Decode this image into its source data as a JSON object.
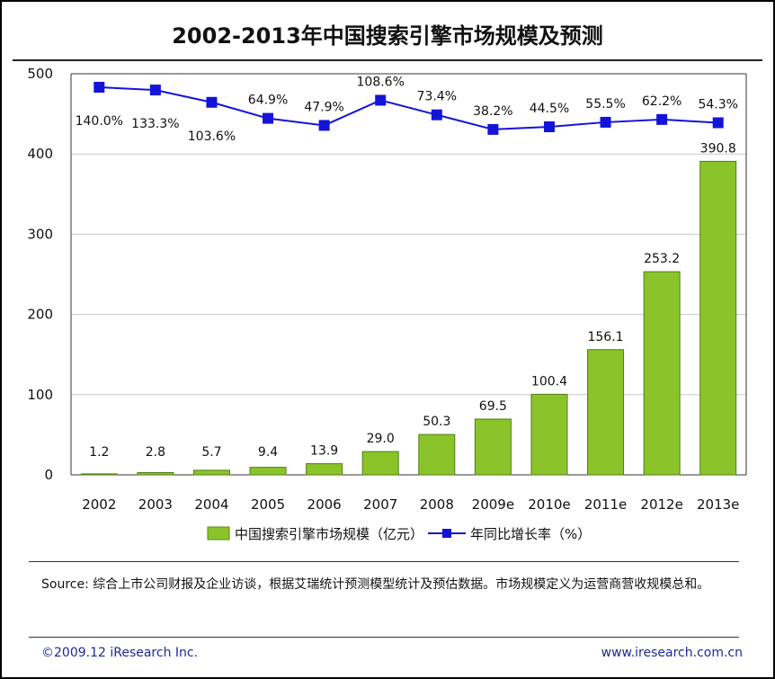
{
  "chart_data": {
    "type": "bar",
    "title": "2002-2013年中国搜索引擎市场规模及预测",
    "categories": [
      "2002",
      "2003",
      "2004",
      "2005",
      "2006",
      "2007",
      "2008",
      "2009e",
      "2010e",
      "2011e",
      "2012e",
      "2013e"
    ],
    "series": [
      {
        "name": "中国搜索引擎市场规模（亿元）",
        "type": "bar",
        "axis": "left",
        "color": "#8ac42a",
        "values": [
          1.2,
          2.8,
          5.7,
          9.4,
          13.9,
          29.0,
          50.3,
          69.5,
          100.4,
          156.1,
          253.2,
          390.8
        ],
        "labels": [
          "1.2",
          "2.8",
          "5.7",
          "9.4",
          "13.9",
          "29.0",
          "50.3",
          "69.5",
          "100.4",
          "156.1",
          "253.2",
          "390.8"
        ]
      },
      {
        "name": "年同比增长率（%）",
        "type": "line",
        "axis": "secondary",
        "color": "#1414d8",
        "values": [
          140.0,
          133.3,
          103.6,
          64.9,
          47.9,
          108.6,
          73.4,
          38.2,
          44.5,
          55.5,
          62.2,
          54.3
        ],
        "labels": [
          "140.0%",
          "133.3%",
          "103.6%",
          "64.9%",
          "47.9%",
          "108.6%",
          "73.4%",
          "38.2%",
          "44.5%",
          "55.5%",
          "62.2%",
          "54.3%"
        ],
        "label_position": [
          "below",
          "below",
          "below",
          "above",
          "above",
          "above",
          "above",
          "above",
          "above",
          "above",
          "above",
          "above"
        ]
      }
    ],
    "ylim": [
      0,
      500
    ],
    "yticks": [
      "0",
      "100",
      "200",
      "300",
      "400",
      "500"
    ],
    "grid": true,
    "legend": "bottom"
  },
  "source_note": "Source: 综合上市公司财报及企业访谈，根据艾瑞统计预测模型统计及预估数据。市场规模定义为运营商营收规模总和。",
  "footer": {
    "left": "©2009.12 iResearch Inc.",
    "right": "www.iresearch.com.cn"
  }
}
